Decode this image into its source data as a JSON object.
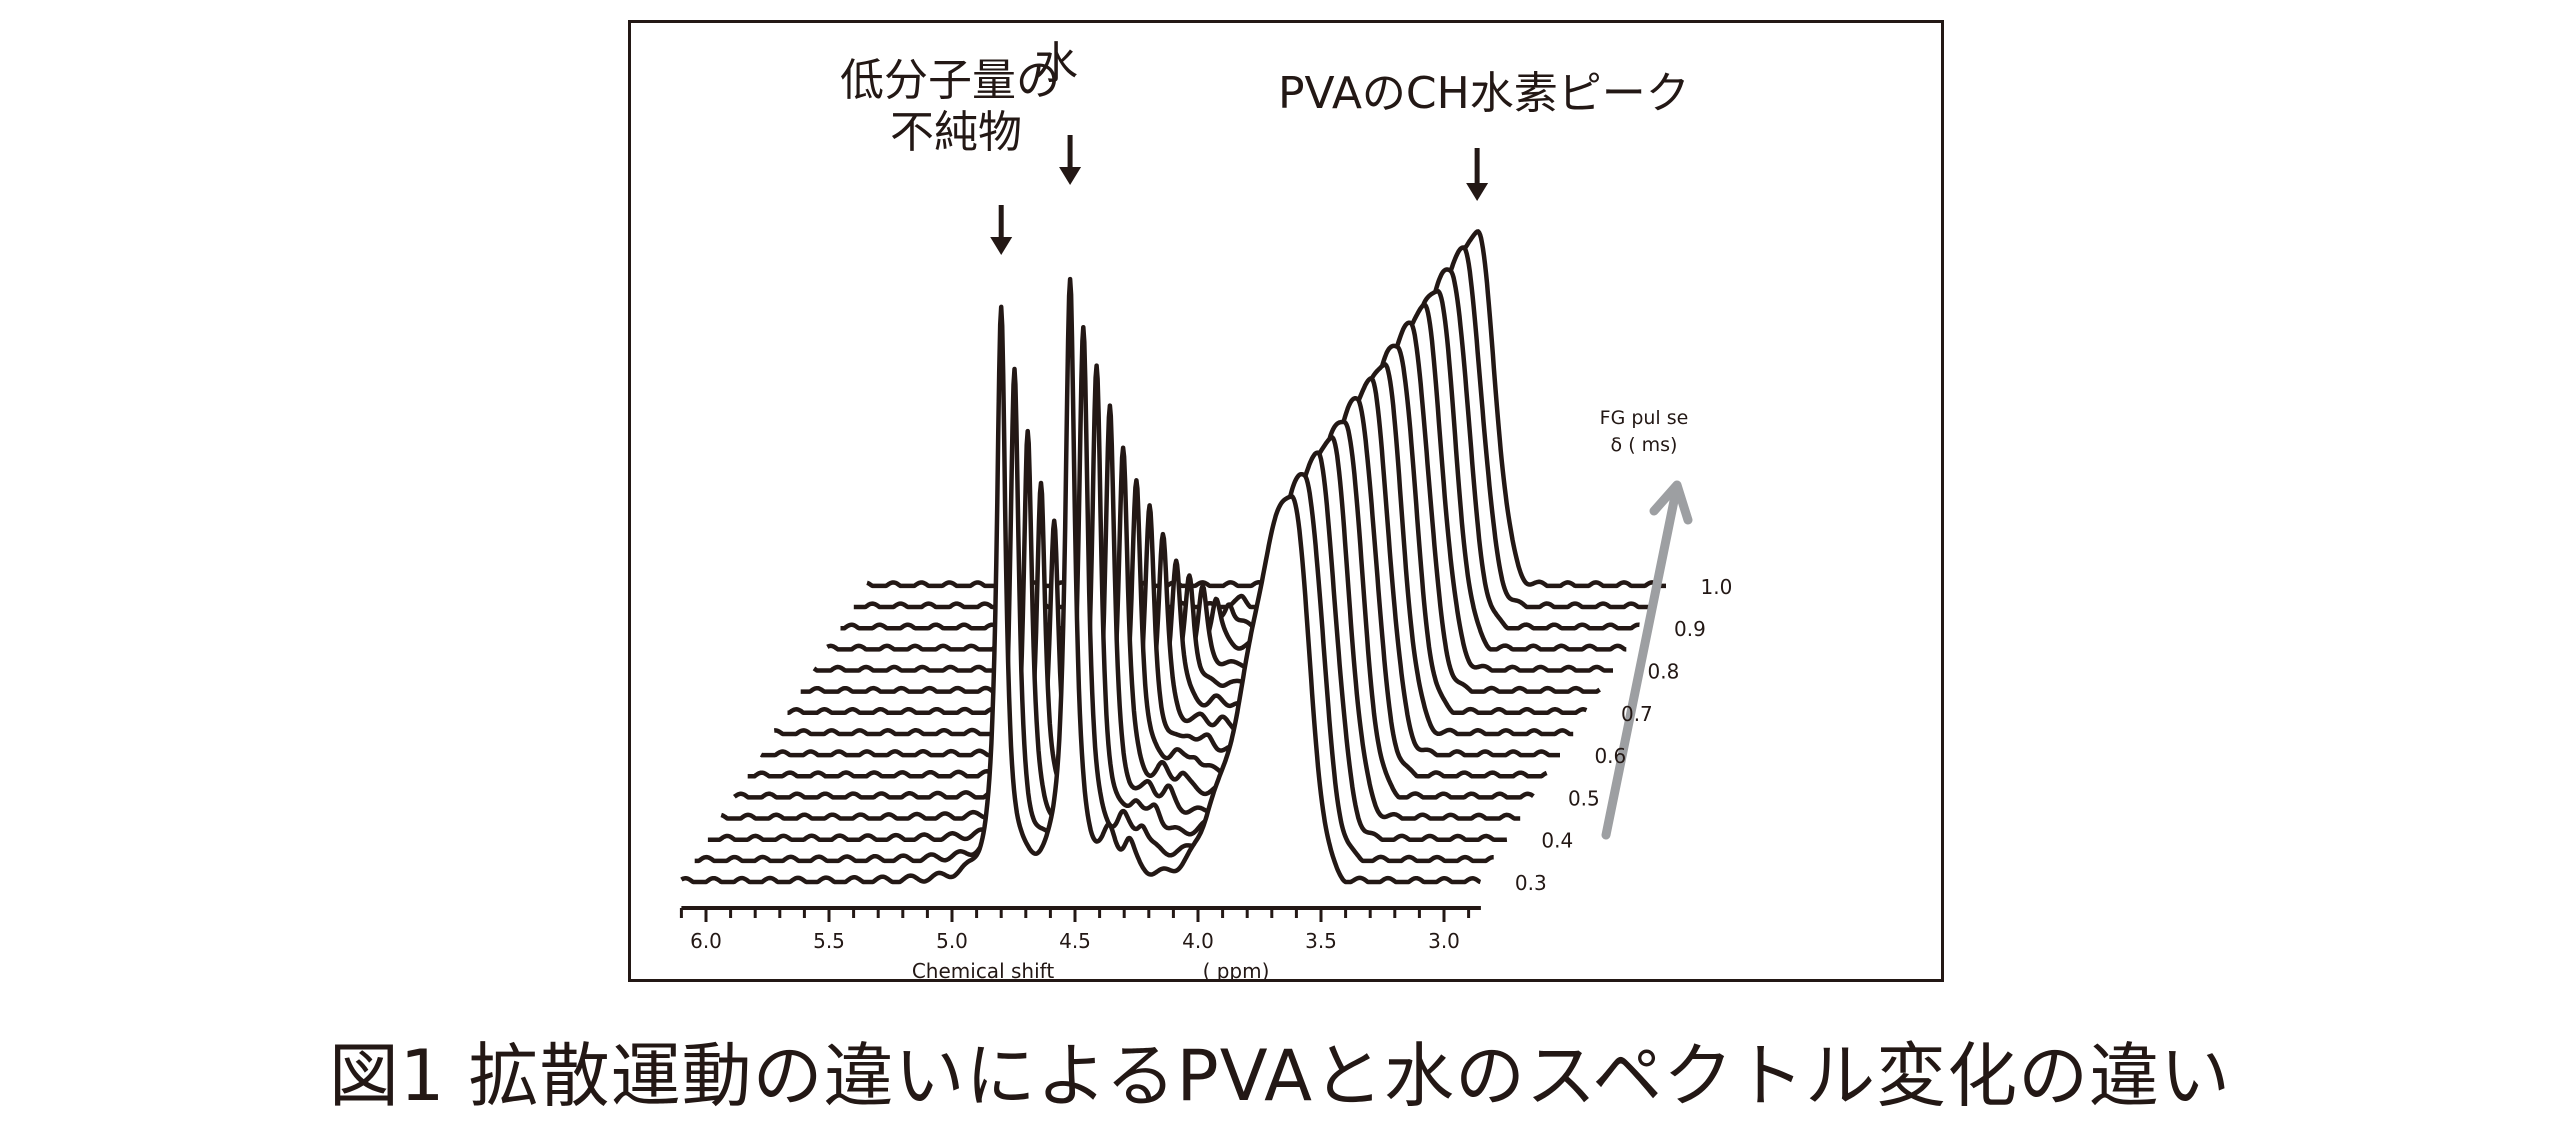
{
  "figure": {
    "caption": "図1 拡散運動の違いによるPVAと水のスペクトル変化の違い"
  },
  "chart_data": {
    "type": "line",
    "subtype": "stacked-3d-spectra",
    "xlabel_left": "Chemical shift",
    "xlabel_right": "( ppm)",
    "x_ticks": [
      "6.0",
      "5.5",
      "5.0",
      "4.5",
      "4.0",
      "3.5",
      "3.0"
    ],
    "x_tick_values": [
      6.0,
      5.5,
      5.0,
      4.5,
      4.0,
      3.5,
      3.0
    ],
    "x_range": [
      6.1,
      2.85
    ],
    "x_reversed": true,
    "depth_axis_title_line1": "FG pul se",
    "depth_axis_title_line2": "δ ( ms)",
    "depth_labels": [
      "0.3",
      "0.4",
      "0.5",
      "0.6",
      "0.7",
      "0.8",
      "0.9",
      "1.0"
    ],
    "series_count": 15,
    "series_pulse_ms": [
      0.3,
      0.35,
      0.4,
      0.45,
      0.5,
      0.55,
      0.6,
      0.65,
      0.7,
      0.75,
      0.8,
      0.85,
      0.9,
      0.95,
      1.0
    ],
    "peaks": [
      {
        "label": "impurity",
        "ppm": 4.8,
        "height_front": 1.0,
        "height_back": 0.0
      },
      {
        "label": "water",
        "ppm": 4.52,
        "height_front": 1.05,
        "height_back": 0.0
      },
      {
        "label": "PVA CH",
        "ppm": 3.62,
        "height_front": 0.68,
        "height_back": 0.62
      }
    ],
    "annotations": [
      {
        "name": "impurity",
        "line1": "低分子量の",
        "line2": "不純物",
        "ppm": 4.8
      },
      {
        "name": "water",
        "line1": "水",
        "ppm": 4.52
      },
      {
        "name": "pva",
        "line1": "PVAのCH水素ピーク",
        "ppm": 3.62
      }
    ],
    "colors": {
      "line": "#231815",
      "arrow": "#9d9fa2",
      "frame": "#231815"
    }
  }
}
